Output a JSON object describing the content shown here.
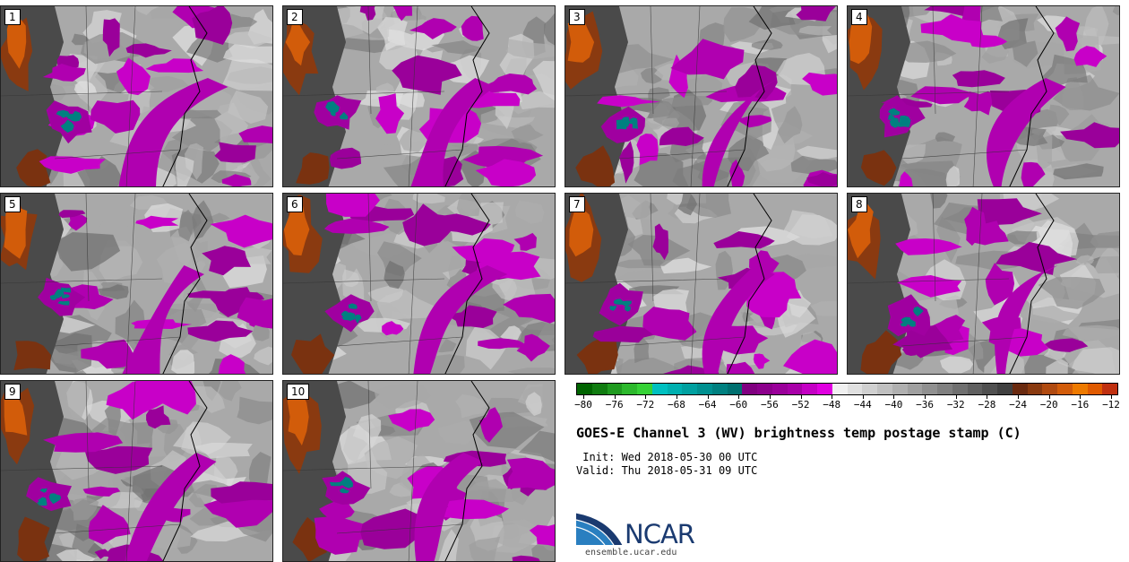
{
  "figure": {
    "title": "GOES-E Channel 3 (WV) brightness temp postage stamp (C)",
    "init": " Init: Wed 2018-05-30 00 UTC",
    "valid": "Valid: Thu 2018-05-31 09 UTC"
  },
  "panels": [
    {
      "label": "1"
    },
    {
      "label": "2"
    },
    {
      "label": "3"
    },
    {
      "label": "4"
    },
    {
      "label": "5"
    },
    {
      "label": "6"
    },
    {
      "label": "7"
    },
    {
      "label": "8"
    },
    {
      "label": "9"
    },
    {
      "label": "10"
    }
  ],
  "colorbar": {
    "min": -80,
    "max": -10,
    "step": 2,
    "tick_labels": [
      "−80",
      "−76",
      "−72",
      "−68",
      "−64",
      "−60",
      "−56",
      "−52",
      "−48",
      "−44",
      "−40",
      "−36",
      "−32",
      "−28",
      "−24",
      "−20",
      "−16",
      "−12"
    ],
    "colors": [
      "#006400",
      "#107c10",
      "#1f9a1f",
      "#2cb82c",
      "#36d236",
      "#00c0c0",
      "#00b0b0",
      "#00a0a0",
      "#009090",
      "#008080",
      "#007070",
      "#800080",
      "#8c008c",
      "#9a009a",
      "#a800a8",
      "#c400c4",
      "#e000e0",
      "#f0f0f0",
      "#e0e0e0",
      "#d0d0d0",
      "#c0c0c0",
      "#b0b0b0",
      "#a0a0a0",
      "#909090",
      "#808080",
      "#707070",
      "#606060",
      "#505050",
      "#404040",
      "#6a2a10",
      "#8a3a10",
      "#b04a10",
      "#d25c0a",
      "#ee7a00",
      "#e05a00",
      "#c03010"
    ]
  },
  "logo": {
    "name": "NCAR",
    "url": "ensemble.ucar.edu",
    "color": "#1a3a70",
    "accent": "#2a7fc0"
  }
}
